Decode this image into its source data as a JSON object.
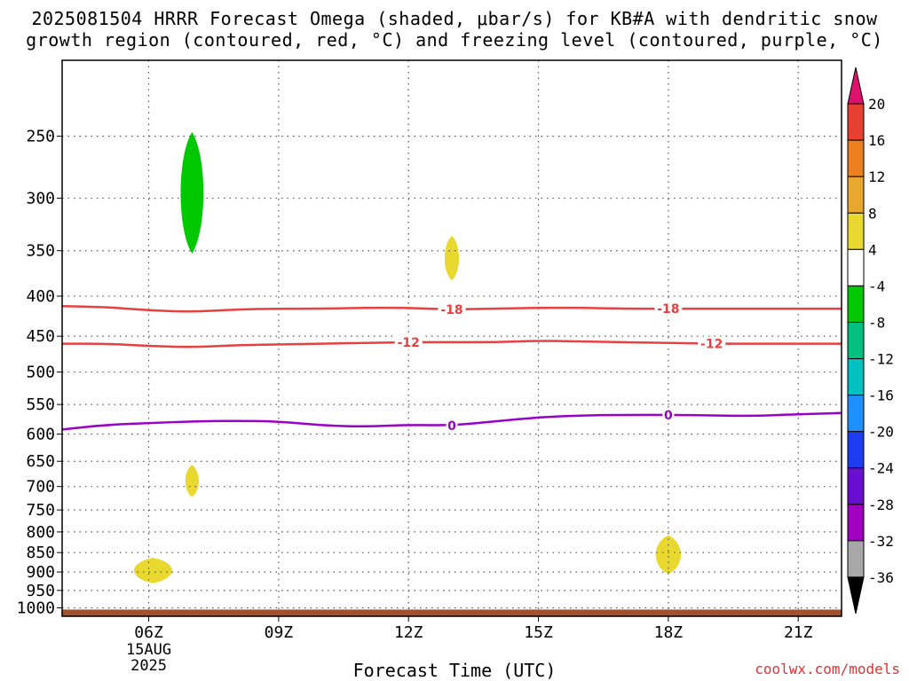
{
  "title_line1": "2025081504 HRRR Forecast Omega (shaded, μbar/s) for KB#A with dendritic snow",
  "title_line2": "growth region (contoured, red, °C) and freezing level (contoured, purple, °C)",
  "credit": "coolwx.com/models",
  "chart_data": {
    "type": "time-height-contour",
    "xlabel": "Forecast Time (UTC)",
    "x_tick_labels": [
      "06Z",
      "09Z",
      "12Z",
      "15Z",
      "18Z",
      "21Z"
    ],
    "x_tick_hours": [
      6,
      9,
      12,
      15,
      18,
      21
    ],
    "x_date_label": [
      "15AUG",
      "2025"
    ],
    "xlim_hours": [
      4,
      22
    ],
    "ylabel": "",
    "y_ticks": [
      250,
      300,
      350,
      400,
      450,
      500,
      550,
      600,
      650,
      700,
      750,
      800,
      850,
      900,
      950,
      1000
    ],
    "ylim": [
      200,
      1025
    ],
    "y_scale": "log-pressure",
    "grid": "dotted",
    "colorbar": {
      "placement": "right",
      "labels": [
        20,
        16,
        12,
        8,
        4,
        -4,
        -8,
        -12,
        -16,
        -20,
        -24,
        -28,
        -32,
        -36
      ],
      "colors_top_to_bottom": [
        "#e0106e",
        "#e84030",
        "#ec8020",
        "#e8a830",
        "#e8d830",
        "#ffffff",
        "#00c800",
        "#00c080",
        "#00c0c0",
        "#1e90ff",
        "#1e3cf0",
        "#6a0fd0",
        "#a000c0",
        "#a8a8a8",
        "#000000"
      ]
    },
    "contours": [
      {
        "kind": "dendritic",
        "color": "#e84040",
        "label": "-18",
        "points": [
          [
            4,
            412
          ],
          [
            5,
            413
          ],
          [
            6,
            417
          ],
          [
            7,
            419
          ],
          [
            8,
            416
          ],
          [
            9,
            415
          ],
          [
            10,
            415
          ],
          [
            11,
            414
          ],
          [
            12,
            414
          ],
          [
            13,
            416
          ],
          [
            14,
            415
          ],
          [
            15,
            414
          ],
          [
            16,
            414
          ],
          [
            17,
            415
          ],
          [
            18,
            415
          ],
          [
            19,
            415
          ],
          [
            20,
            415
          ],
          [
            21,
            415
          ],
          [
            22,
            415
          ]
        ],
        "label_at_hours": [
          13,
          18
        ]
      },
      {
        "kind": "dendritic",
        "color": "#e84040",
        "label": "-12",
        "points": [
          [
            4,
            460
          ],
          [
            5,
            460
          ],
          [
            6,
            463
          ],
          [
            7,
            465
          ],
          [
            8,
            462
          ],
          [
            9,
            461
          ],
          [
            10,
            460
          ],
          [
            11,
            459
          ],
          [
            12,
            458
          ],
          [
            13,
            458
          ],
          [
            14,
            458
          ],
          [
            15,
            456
          ],
          [
            16,
            457
          ],
          [
            17,
            458
          ],
          [
            18,
            459
          ],
          [
            19,
            460
          ],
          [
            20,
            460
          ],
          [
            21,
            460
          ],
          [
            22,
            460
          ]
        ],
        "label_at_hours": [
          12,
          19
        ]
      },
      {
        "kind": "freezing",
        "color": "#9b00c8",
        "label": "0",
        "points": [
          [
            4,
            592
          ],
          [
            5,
            584
          ],
          [
            6,
            581
          ],
          [
            7,
            578
          ],
          [
            8,
            577
          ],
          [
            9,
            578
          ],
          [
            10,
            585
          ],
          [
            11,
            587
          ],
          [
            12,
            584
          ],
          [
            13,
            585
          ],
          [
            14,
            578
          ],
          [
            15,
            571
          ],
          [
            16,
            568
          ],
          [
            17,
            567
          ],
          [
            18,
            567
          ],
          [
            19,
            568
          ],
          [
            20,
            569
          ],
          [
            21,
            566
          ],
          [
            22,
            564
          ]
        ],
        "label_at_hours": [
          13,
          18
        ]
      }
    ],
    "omega_areas": [
      {
        "value_range": "-4 to -8",
        "color": "#00c800",
        "center_hour": 7.0,
        "top": 247,
        "bottom": 353,
        "half_width_hours": 0.27
      },
      {
        "value_range": "4 to 8",
        "color": "#e8d830",
        "center_hour": 13.0,
        "top": 335,
        "bottom": 382,
        "half_width_hours": 0.17
      },
      {
        "value_range": "4 to 8",
        "color": "#e8d830",
        "center_hour": 7.0,
        "top": 657,
        "bottom": 722,
        "half_width_hours": 0.16
      },
      {
        "value_range": "4 to 8",
        "color": "#e8d830",
        "center_hour": 6.1,
        "top": 863,
        "bottom": 930,
        "half_width_hours": 0.45
      },
      {
        "value_range": "4 to 8",
        "color": "#e8d830",
        "center_hour": 18.0,
        "top": 808,
        "bottom": 905,
        "half_width_hours": 0.3
      }
    ],
    "terrain": {
      "color": "#a0522d",
      "top_pressure": 1005
    }
  }
}
